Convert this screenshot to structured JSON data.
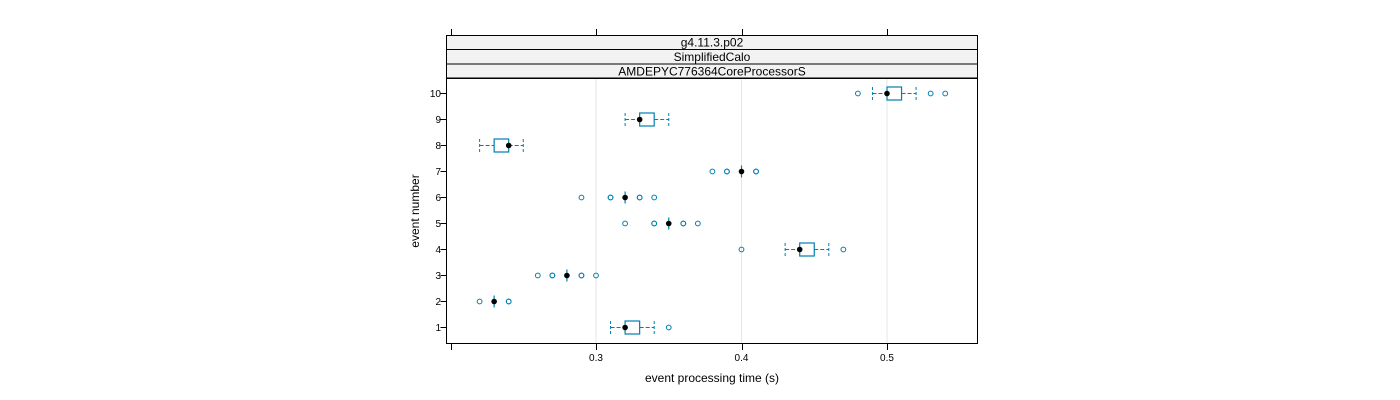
{
  "chart_data": {
    "type": "boxplot",
    "strips": [
      "g4.11.3.p02",
      "SimplifiedCalo",
      "AMDEPYC776364CoreProcessorS"
    ],
    "xlabel": "event processing time (s)",
    "ylabel": "event number",
    "xlim": [
      0.2,
      0.565
    ],
    "x_ticks": [
      0.3,
      0.4,
      0.5
    ],
    "x_tick_labels": [
      "0.3",
      "0.4",
      "0.5"
    ],
    "categories": [
      "1",
      "2",
      "3",
      "4",
      "5",
      "6",
      "7",
      "8",
      "9",
      "10"
    ],
    "grid": true,
    "colors": {
      "box": "#0080b0",
      "whisker": "#0080b0",
      "median": "#000000",
      "strip_bg": "#f2f2f2",
      "grid": "#e6e6e6"
    },
    "boxes": [
      {
        "event": "1",
        "median": 0.32,
        "q1": 0.32,
        "q3": 0.33,
        "whisker_low": 0.31,
        "whisker_high": 0.34,
        "outliers": [
          0.35
        ]
      },
      {
        "event": "2",
        "median": 0.23,
        "q1": 0.23,
        "q3": 0.23,
        "whisker_low": 0.23,
        "whisker_high": 0.23,
        "outliers": [
          0.22,
          0.24,
          0.24
        ]
      },
      {
        "event": "3",
        "median": 0.28,
        "q1": 0.28,
        "q3": 0.28,
        "whisker_low": 0.28,
        "whisker_high": 0.28,
        "outliers": [
          0.26,
          0.27,
          0.27,
          0.29,
          0.29,
          0.3
        ]
      },
      {
        "event": "4",
        "median": 0.44,
        "q1": 0.44,
        "q3": 0.45,
        "whisker_low": 0.43,
        "whisker_high": 0.46,
        "outliers": [
          0.4,
          0.47
        ]
      },
      {
        "event": "5",
        "median": 0.35,
        "q1": 0.35,
        "q3": 0.35,
        "whisker_low": 0.35,
        "whisker_high": 0.35,
        "outliers": [
          0.32,
          0.34,
          0.34,
          0.36,
          0.36,
          0.37
        ]
      },
      {
        "event": "6",
        "median": 0.32,
        "q1": 0.32,
        "q3": 0.32,
        "whisker_low": 0.32,
        "whisker_high": 0.32,
        "outliers": [
          0.29,
          0.31,
          0.31,
          0.33,
          0.33,
          0.34
        ]
      },
      {
        "event": "7",
        "median": 0.4,
        "q1": 0.4,
        "q3": 0.4,
        "whisker_low": 0.4,
        "whisker_high": 0.4,
        "outliers": [
          0.38,
          0.39,
          0.39,
          0.41,
          0.41
        ]
      },
      {
        "event": "8",
        "median": 0.24,
        "q1": 0.23,
        "q3": 0.24,
        "whisker_low": 0.22,
        "whisker_high": 0.25,
        "outliers": []
      },
      {
        "event": "9",
        "median": 0.33,
        "q1": 0.33,
        "q3": 0.34,
        "whisker_low": 0.32,
        "whisker_high": 0.35,
        "outliers": []
      },
      {
        "event": "10",
        "median": 0.5,
        "q1": 0.5,
        "q3": 0.51,
        "whisker_low": 0.49,
        "whisker_high": 0.52,
        "outliers": [
          0.48,
          0.53,
          0.54
        ]
      }
    ]
  }
}
